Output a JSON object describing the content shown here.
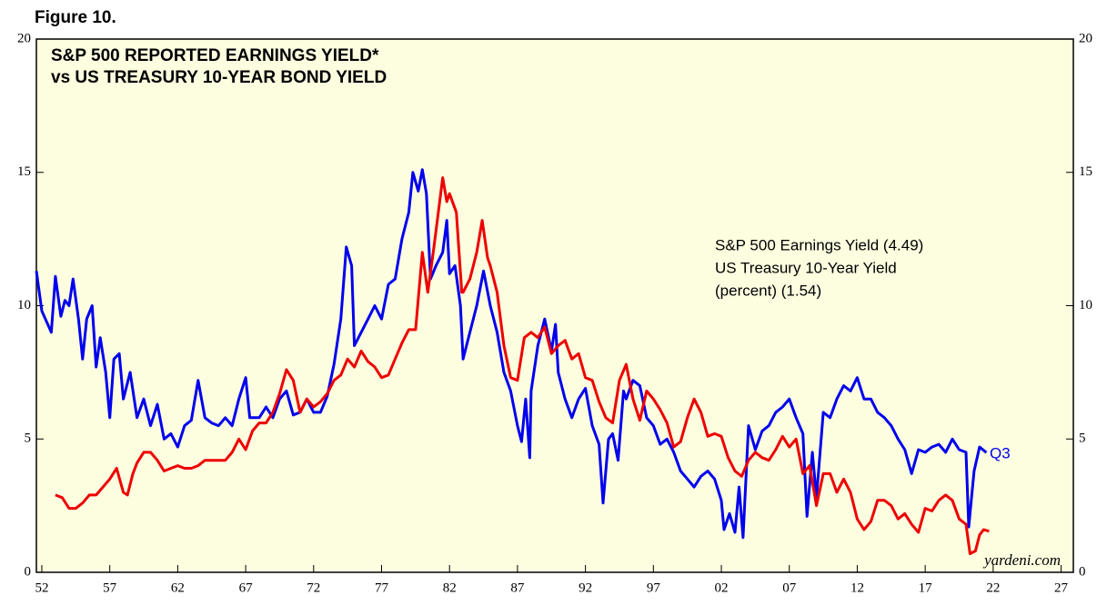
{
  "chart_data": {
    "type": "line",
    "figure_label": "Figure 10.",
    "title": [
      "S&P 500 REPORTED EARNINGS YIELD*",
      "vs US TREASURY 10-YEAR BOND YIELD"
    ],
    "legend_note": "(percent) (1.54)",
    "annotation": "Q3",
    "source": "yardeni.com",
    "xlim": [
      1951.6,
      2027.9
    ],
    "xticks": [
      {
        "value": 1952,
        "label": "52"
      },
      {
        "value": 1957,
        "label": "57"
      },
      {
        "value": 1962,
        "label": "62"
      },
      {
        "value": 1967,
        "label": "67"
      },
      {
        "value": 1972,
        "label": "72"
      },
      {
        "value": 1977,
        "label": "77"
      },
      {
        "value": 1982,
        "label": "82"
      },
      {
        "value": 1987,
        "label": "87"
      },
      {
        "value": 1992,
        "label": "92"
      },
      {
        "value": 1997,
        "label": "97"
      },
      {
        "value": 2002,
        "label": "02"
      },
      {
        "value": 2007,
        "label": "07"
      },
      {
        "value": 2012,
        "label": "12"
      },
      {
        "value": 2017,
        "label": "17"
      },
      {
        "value": 2022,
        "label": "22"
      },
      {
        "value": 2027,
        "label": "27"
      }
    ],
    "ylim": [
      0,
      20
    ],
    "yticks": [
      0,
      5,
      10,
      15,
      20
    ],
    "y2lim": [
      0,
      20
    ],
    "y2ticks": [
      0,
      5,
      10,
      15,
      20
    ],
    "background": "#fdfde0",
    "series": [
      {
        "name": "S&P 500 Earnings Yield (4.49)",
        "color": "#0000ee",
        "x": [
          1951.6,
          1952,
          1952.7,
          1953,
          1953.4,
          1953.7,
          1954,
          1954.3,
          1954.7,
          1955,
          1955.3,
          1955.7,
          1956,
          1956.3,
          1956.7,
          1957,
          1957.3,
          1957.7,
          1958,
          1958.5,
          1959,
          1959.5,
          1960,
          1960.5,
          1961,
          1961.5,
          1962,
          1962.5,
          1963,
          1963.5,
          1964,
          1964.5,
          1965,
          1965.5,
          1966,
          1966.5,
          1967,
          1967.3,
          1968,
          1968.5,
          1969,
          1969.5,
          1970,
          1970.5,
          1971,
          1971.5,
          1972,
          1972.5,
          1973,
          1973.5,
          1974,
          1974.4,
          1974.8,
          1975,
          1975.5,
          1976,
          1976.5,
          1977,
          1977.5,
          1978,
          1978.5,
          1979,
          1979.3,
          1979.7,
          1980,
          1980.3,
          1980.6,
          1981,
          1981.5,
          1981.8,
          1982,
          1982.4,
          1982.8,
          1983,
          1983.5,
          1984,
          1984.5,
          1985,
          1985.5,
          1986,
          1986.5,
          1987,
          1987.3,
          1987.6,
          1987.9,
          1988,
          1988.5,
          1989,
          1989.5,
          1989.8,
          1990,
          1990.5,
          1991,
          1991.5,
          1992,
          1992.5,
          1993,
          1993.3,
          1993.7,
          1994,
          1994.4,
          1994.8,
          1995,
          1995.5,
          1996,
          1996.5,
          1997,
          1997.5,
          1998,
          1998.5,
          1999,
          1999.5,
          2000,
          2000.5,
          2001,
          2001.5,
          2002,
          2002.2,
          2002.6,
          2003,
          2003.3,
          2003.6,
          2004,
          2004.5,
          2005,
          2005.5,
          2006,
          2006.5,
          2007,
          2007.5,
          2008,
          2008.3,
          2008.7,
          2009,
          2009.5,
          2010,
          2010.5,
          2011,
          2011.5,
          2012,
          2012.5,
          2013,
          2013.5,
          2014,
          2014.5,
          2015,
          2015.5,
          2016,
          2016.5,
          2017,
          2017.5,
          2018,
          2018.5,
          2019,
          2019.5,
          2020,
          2020.2,
          2020.6,
          2021,
          2021.5
        ],
        "values": [
          11.3,
          9.8,
          9.0,
          11.1,
          9.6,
          10.2,
          10,
          11,
          9.5,
          8,
          9.5,
          10,
          7.7,
          8.8,
          7.5,
          5.8,
          8.0,
          8.2,
          6.5,
          7.5,
          5.8,
          6.5,
          5.5,
          6.3,
          5.0,
          5.2,
          4.7,
          5.5,
          5.7,
          7.2,
          5.8,
          5.6,
          5.5,
          5.8,
          5.5,
          6.5,
          7.3,
          5.8,
          5.8,
          6.2,
          5.8,
          6.5,
          6.8,
          5.9,
          6.0,
          6.5,
          6.0,
          6.0,
          6.6,
          7.8,
          9.5,
          12.2,
          11.5,
          8.5,
          9.0,
          9.5,
          10.0,
          9.5,
          10.8,
          11.0,
          12.5,
          13.5,
          15.0,
          14.3,
          15.1,
          14.2,
          11.0,
          11.5,
          12.0,
          13.2,
          11.2,
          11.5,
          10.0,
          8.0,
          9.0,
          10.0,
          11.3,
          10.0,
          9.0,
          7.5,
          6.8,
          5.5,
          4.9,
          6.5,
          4.3,
          6.8,
          8.5,
          9.5,
          8.3,
          9.3,
          7.5,
          6.5,
          5.8,
          6.5,
          6.9,
          5.5,
          4.8,
          2.6,
          5.0,
          5.2,
          4.2,
          6.8,
          6.5,
          7.2,
          7.0,
          5.8,
          5.5,
          4.8,
          5.0,
          4.5,
          3.8,
          3.5,
          3.2,
          3.6,
          3.8,
          3.5,
          2.7,
          1.6,
          2.2,
          1.5,
          3.2,
          1.3,
          5.5,
          4.6,
          5.3,
          5.5,
          6.0,
          6.2,
          6.5,
          5.8,
          5.2,
          2.1,
          4.5,
          2.8,
          6.0,
          5.8,
          6.5,
          7.0,
          6.8,
          7.3,
          6.5,
          6.5,
          6.0,
          5.8,
          5.5,
          5.0,
          4.6,
          3.7,
          4.6,
          4.5,
          4.7,
          4.8,
          4.5,
          5.0,
          4.6,
          4.5,
          1.7,
          3.8,
          4.7,
          4.49
        ]
      },
      {
        "name": "US Treasury 10-Year Yield",
        "color": "#ee0000",
        "x": [
          1953,
          1953.5,
          1954,
          1954.5,
          1955,
          1955.5,
          1956,
          1956.5,
          1957,
          1957.5,
          1958,
          1958.3,
          1958.7,
          1959,
          1959.5,
          1960,
          1960.5,
          1961,
          1961.5,
          1962,
          1962.5,
          1963,
          1963.5,
          1964,
          1965,
          1965.5,
          1966,
          1966.5,
          1967,
          1967.5,
          1968,
          1968.5,
          1969,
          1969.5,
          1970,
          1970.5,
          1971,
          1971.5,
          1972,
          1972.5,
          1973,
          1973.5,
          1974,
          1974.5,
          1975,
          1975.5,
          1976,
          1976.5,
          1977,
          1977.5,
          1978,
          1978.5,
          1979,
          1979.5,
          1980,
          1980.4,
          1980.8,
          1981,
          1981.5,
          1981.8,
          1982,
          1982.5,
          1982.9,
          1983,
          1983.5,
          1984,
          1984.4,
          1984.8,
          1985,
          1985.5,
          1986,
          1986.5,
          1987,
          1987.5,
          1988,
          1988.5,
          1989,
          1989.5,
          1990,
          1990.5,
          1991,
          1991.5,
          1992,
          1992.5,
          1993,
          1993.5,
          1994,
          1994.5,
          1995,
          1995.5,
          1996,
          1996.5,
          1997,
          1997.5,
          1998,
          1998.5,
          1999,
          1999.5,
          2000,
          2000.5,
          2001,
          2001.5,
          2002,
          2002.5,
          2003,
          2003.5,
          2004,
          2004.5,
          2005,
          2005.5,
          2006,
          2006.5,
          2007,
          2007.5,
          2008,
          2008.5,
          2009,
          2009.5,
          2010,
          2010.5,
          2011,
          2011.5,
          2012,
          2012.5,
          2013,
          2013.5,
          2014,
          2014.5,
          2015,
          2015.5,
          2016,
          2016.5,
          2017,
          2017.5,
          2018,
          2018.5,
          2019,
          2019.5,
          2020,
          2020.3,
          2020.7,
          2021,
          2021.3,
          2021.7
        ],
        "values": [
          2.9,
          2.8,
          2.4,
          2.4,
          2.6,
          2.9,
          2.9,
          3.2,
          3.5,
          3.9,
          3.0,
          2.9,
          3.7,
          4.1,
          4.5,
          4.5,
          4.2,
          3.8,
          3.9,
          4.0,
          3.9,
          3.9,
          4.0,
          4.2,
          4.2,
          4.2,
          4.5,
          5.0,
          4.6,
          5.3,
          5.6,
          5.6,
          6.0,
          6.7,
          7.6,
          7.2,
          6.0,
          6.5,
          6.2,
          6.4,
          6.7,
          7.2,
          7.4,
          8.0,
          7.7,
          8.3,
          7.9,
          7.7,
          7.3,
          7.4,
          8.0,
          8.6,
          9.1,
          9.1,
          12.0,
          10.5,
          12.0,
          12.8,
          14.8,
          13.9,
          14.2,
          13.5,
          10.5,
          10.5,
          11.0,
          12.0,
          13.2,
          11.8,
          11.5,
          10.5,
          8.5,
          7.3,
          7.2,
          8.8,
          9.0,
          8.8,
          9.2,
          8.2,
          8.5,
          8.7,
          8.0,
          8.2,
          7.3,
          7.2,
          6.4,
          5.8,
          5.6,
          7.2,
          7.8,
          6.5,
          5.7,
          6.8,
          6.5,
          6.1,
          5.6,
          4.7,
          4.9,
          5.8,
          6.5,
          6.0,
          5.1,
          5.2,
          5.1,
          4.3,
          3.8,
          3.6,
          4.2,
          4.5,
          4.3,
          4.2,
          4.6,
          5.1,
          4.7,
          5.0,
          3.7,
          4.0,
          2.5,
          3.7,
          3.7,
          3.0,
          3.5,
          3.0,
          2.0,
          1.6,
          1.9,
          2.7,
          2.7,
          2.5,
          2.0,
          2.2,
          1.8,
          1.5,
          2.4,
          2.3,
          2.7,
          2.9,
          2.7,
          2.0,
          1.8,
          0.7,
          0.8,
          1.4,
          1.6,
          1.54
        ]
      }
    ]
  }
}
